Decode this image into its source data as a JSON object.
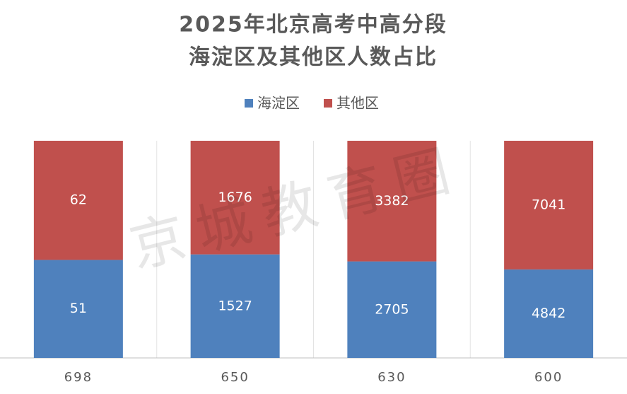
{
  "chart_data": {
    "type": "stacked_percent_bar",
    "title": [
      "2025年北京高考中高分段",
      "海淀区及其他区人数占比"
    ],
    "watermark": "京城教育圈",
    "categories": [
      "698",
      "650",
      "630",
      "600"
    ],
    "series": [
      {
        "name": "海淀区",
        "color": "#4f81bd",
        "values": [
          51,
          1527,
          2705,
          4842
        ]
      },
      {
        "name": "其他区",
        "color": "#c0504d",
        "values": [
          62,
          1676,
          3382,
          7041
        ]
      }
    ],
    "legend": "top"
  }
}
